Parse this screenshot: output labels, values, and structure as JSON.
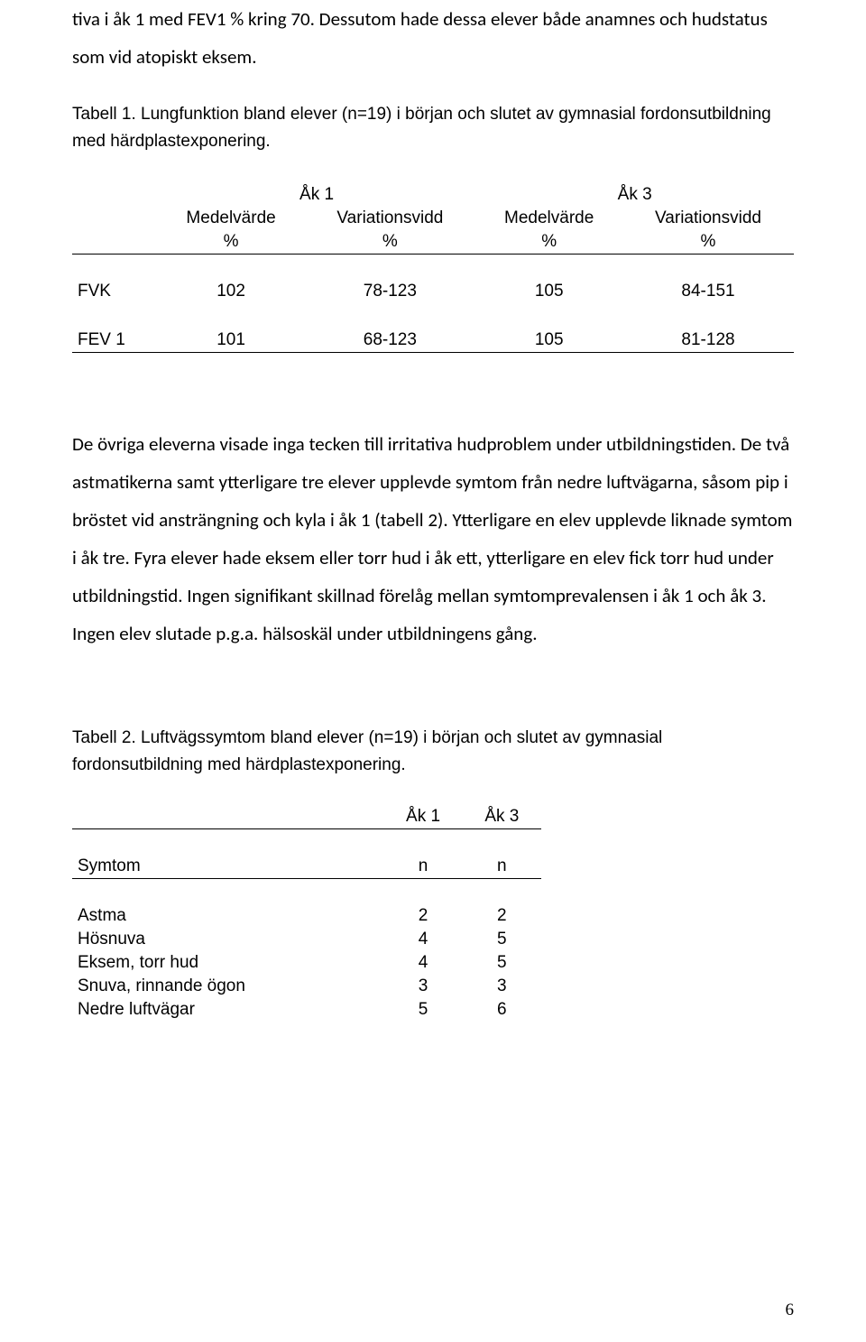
{
  "intro_p1": "tiva i åk 1 med FEV1 % kring 70. Dessutom hade dessa elever både anamnes och hudstatus som vid atopiskt eksem.",
  "table1_caption": "Tabell 1. Lungfunktion bland elever (n=19) i början och slutet av gymnasial fordonsutbildning med härdplastexponering.",
  "table1": {
    "group_headers": [
      "Åk 1",
      "Åk 3"
    ],
    "sub_headers": [
      "Medelvärde",
      "Variationsvidd",
      "Medelvärde",
      "Variationsvidd"
    ],
    "unit_row": [
      "%",
      "%",
      "%",
      "%"
    ],
    "rows": [
      {
        "label": "FVK",
        "cells": [
          "102",
          "78-123",
          "105",
          "84-151"
        ]
      },
      {
        "label": "FEV 1",
        "cells": [
          "101",
          "68-123",
          "105",
          "81-128"
        ]
      }
    ]
  },
  "middle_paragraph": "De övriga eleverna visade inga tecken till irritativa hudproblem under utbildningstiden. De två astmatikerna samt ytterligare tre elever upplevde symtom från nedre luftvägarna, såsom pip i bröstet vid ansträngning och kyla i åk 1 (tabell 2). Ytterligare en elev upplevde liknade symtom i åk tre. Fyra elever hade eksem eller torr hud i åk ett, ytterligare en elev fick torr hud under utbildningstid. Ingen signifikant skillnad förelåg mellan symtomprevalensen i åk 1 och åk 3. Ingen elev slutade p.g.a. hälsoskäl under utbildningens gång.",
  "table2_caption": "Tabell 2. Luftvägssymtom bland elever (n=19) i början och slutet av gymnasial fordonsutbildning med härdplastexponering.",
  "table2": {
    "group_headers": [
      "Åk 1",
      "Åk 3"
    ],
    "row_header_label": "Symtom",
    "col_header_label": "n",
    "rows": [
      {
        "label": "Astma",
        "a": "2",
        "b": "2"
      },
      {
        "label": "Hösnuva",
        "a": "4",
        "b": "5"
      },
      {
        "label": "Eksem, torr hud",
        "a": "4",
        "b": "5"
      },
      {
        "label": "Snuva, rinnande ögon",
        "a": "3",
        "b": "3"
      },
      {
        "label": "Nedre luftvägar",
        "a": "5",
        "b": "6"
      }
    ]
  },
  "page_number": "6"
}
